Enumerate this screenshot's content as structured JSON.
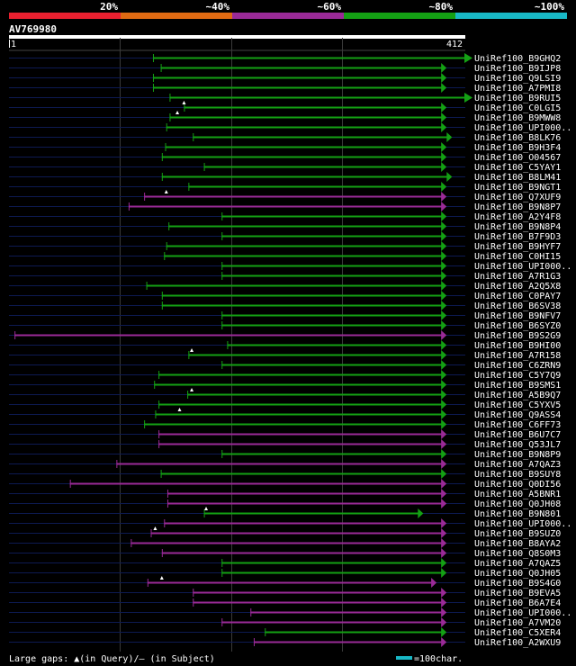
{
  "query_id": "AV769980",
  "query_length": 412,
  "ruler": {
    "start_label": "1",
    "end_label": "412"
  },
  "identity_scale": [
    {
      "label": "20%",
      "color": "#e8202f"
    },
    {
      "label": "~40%",
      "color": "#e06a12"
    },
    {
      "label": "~60%",
      "color": "#9a2a97"
    },
    {
      "label": "~80%",
      "color": "#14a014"
    },
    {
      "label": "~100%",
      "color": "#18b8c6"
    }
  ],
  "colors": {
    "green": "#14a014",
    "purple": "#9a2a97",
    "navy": "#0d1a52",
    "white": "#ffffff"
  },
  "legend": {
    "large_gaps_text": "Large gaps: ▲(in Query)/– (in Subject)",
    "scale_text": "=100char."
  },
  "hits": [
    {
      "label": "UniRef100_B9GHQ2",
      "start": 130,
      "end": 412,
      "color": "green",
      "ext": true,
      "mark": null
    },
    {
      "label": "UniRef100_B9IJP8",
      "start": 137,
      "end": 391,
      "color": "green",
      "ext": false,
      "mark": null
    },
    {
      "label": "UniRef100_Q9LSI9",
      "start": 130,
      "end": 391,
      "color": "green",
      "ext": false,
      "mark": null
    },
    {
      "label": "UniRef100_A7PMI8",
      "start": 130,
      "end": 391,
      "color": "green",
      "ext": false,
      "mark": null
    },
    {
      "label": "UniRef100_B9RUI5",
      "start": 145,
      "end": 412,
      "color": "green",
      "ext": true,
      "mark": null
    },
    {
      "label": "UniRef100_C0LGI5",
      "start": 158,
      "end": 391,
      "color": "green",
      "ext": false,
      "mark": 158
    },
    {
      "label": "UniRef100_B9MWW8",
      "start": 145,
      "end": 391,
      "color": "green",
      "ext": false,
      "mark": 152
    },
    {
      "label": "UniRef100_UPI000..",
      "start": 142,
      "end": 391,
      "color": "green",
      "ext": false,
      "mark": null
    },
    {
      "label": "UniRef100_B8LK76",
      "start": 166,
      "end": 396,
      "color": "green",
      "ext": false,
      "mark": null
    },
    {
      "label": "UniRef100_B9H3F4",
      "start": 141,
      "end": 391,
      "color": "green",
      "ext": false,
      "mark": null
    },
    {
      "label": "UniRef100_O04567",
      "start": 138,
      "end": 391,
      "color": "green",
      "ext": false,
      "mark": null
    },
    {
      "label": "UniRef100_C5YAY1",
      "start": 176,
      "end": 391,
      "color": "green",
      "ext": false,
      "mark": null
    },
    {
      "label": "UniRef100_B8LM41",
      "start": 138,
      "end": 396,
      "color": "green",
      "ext": false,
      "mark": null
    },
    {
      "label": "UniRef100_B9NGT1",
      "start": 162,
      "end": 391,
      "color": "green",
      "ext": false,
      "mark": null
    },
    {
      "label": "UniRef100_Q7XUF9",
      "start": 122,
      "end": 391,
      "color": "purple",
      "ext": false,
      "mark": 142
    },
    {
      "label": "UniRef100_B9N8P7",
      "start": 108,
      "end": 391,
      "color": "purple",
      "ext": false,
      "mark": null
    },
    {
      "label": "UniRef100_A2Y4F8",
      "start": 192,
      "end": 391,
      "color": "green",
      "ext": false,
      "mark": null
    },
    {
      "label": "UniRef100_B9N8P4",
      "start": 144,
      "end": 391,
      "color": "green",
      "ext": false,
      "mark": null
    },
    {
      "label": "UniRef100_B7F9D3",
      "start": 192,
      "end": 391,
      "color": "green",
      "ext": false,
      "mark": null
    },
    {
      "label": "UniRef100_B9HYF7",
      "start": 142,
      "end": 391,
      "color": "green",
      "ext": false,
      "mark": null
    },
    {
      "label": "UniRef100_C0HI15",
      "start": 140,
      "end": 391,
      "color": "green",
      "ext": false,
      "mark": null
    },
    {
      "label": "UniRef100_UPI000..",
      "start": 192,
      "end": 391,
      "color": "green",
      "ext": false,
      "mark": null
    },
    {
      "label": "UniRef100_A7R1G3",
      "start": 192,
      "end": 391,
      "color": "green",
      "ext": false,
      "mark": null
    },
    {
      "label": "UniRef100_A2Q5X8",
      "start": 124,
      "end": 391,
      "color": "green",
      "ext": false,
      "mark": null
    },
    {
      "label": "UniRef100_C0PAY7",
      "start": 138,
      "end": 391,
      "color": "green",
      "ext": false,
      "mark": null
    },
    {
      "label": "UniRef100_B6SV38",
      "start": 138,
      "end": 391,
      "color": "green",
      "ext": false,
      "mark": null
    },
    {
      "label": "UniRef100_B9NFV7",
      "start": 192,
      "end": 391,
      "color": "green",
      "ext": false,
      "mark": null
    },
    {
      "label": "UniRef100_B6SYZ0",
      "start": 192,
      "end": 391,
      "color": "green",
      "ext": false,
      "mark": null
    },
    {
      "label": "UniRef100_B9S2G9",
      "start": 5,
      "end": 391,
      "color": "purple",
      "ext": false,
      "mark": null
    },
    {
      "label": "UniRef100_B9HI00",
      "start": 197,
      "end": 391,
      "color": "green",
      "ext": false,
      "mark": null
    },
    {
      "label": "UniRef100_A7R158",
      "start": 162,
      "end": 391,
      "color": "green",
      "ext": false,
      "mark": 165
    },
    {
      "label": "UniRef100_C6ZRN9",
      "start": 192,
      "end": 391,
      "color": "green",
      "ext": false,
      "mark": null
    },
    {
      "label": "UniRef100_C5Y7Q9",
      "start": 135,
      "end": 391,
      "color": "green",
      "ext": false,
      "mark": null
    },
    {
      "label": "UniRef100_B9SMS1",
      "start": 131,
      "end": 391,
      "color": "green",
      "ext": false,
      "mark": null
    },
    {
      "label": "UniRef100_A5B9Q7",
      "start": 161,
      "end": 391,
      "color": "green",
      "ext": false,
      "mark": 165
    },
    {
      "label": "UniRef100_C5YXV5",
      "start": 135,
      "end": 391,
      "color": "green",
      "ext": false,
      "mark": null
    },
    {
      "label": "UniRef100_Q9ASS4",
      "start": 132,
      "end": 391,
      "color": "green",
      "ext": false,
      "mark": 154
    },
    {
      "label": "UniRef100_C6FF73",
      "start": 122,
      "end": 391,
      "color": "green",
      "ext": false,
      "mark": null
    },
    {
      "label": "UniRef100_B6U7C7",
      "start": 135,
      "end": 391,
      "color": "purple",
      "ext": false,
      "mark": null
    },
    {
      "label": "UniRef100_Q53JL7",
      "start": 135,
      "end": 391,
      "color": "purple",
      "ext": false,
      "mark": null
    },
    {
      "label": "UniRef100_B9N8P9",
      "start": 192,
      "end": 391,
      "color": "green",
      "ext": false,
      "mark": null
    },
    {
      "label": "UniRef100_A7QAZ3",
      "start": 97,
      "end": 391,
      "color": "purple",
      "ext": false,
      "mark": null
    },
    {
      "label": "UniRef100_B9SUY8",
      "start": 137,
      "end": 391,
      "color": "green",
      "ext": false,
      "mark": null
    },
    {
      "label": "UniRef100_Q0DI56",
      "start": 55,
      "end": 391,
      "color": "purple",
      "ext": false,
      "mark": null
    },
    {
      "label": "UniRef100_A5BNR1",
      "start": 143,
      "end": 391,
      "color": "purple",
      "ext": false,
      "mark": null
    },
    {
      "label": "UniRef100_Q0JH08",
      "start": 143,
      "end": 391,
      "color": "purple",
      "ext": false,
      "mark": null
    },
    {
      "label": "UniRef100_B9N801",
      "start": 176,
      "end": 370,
      "color": "green",
      "ext": false,
      "mark": 178
    },
    {
      "label": "UniRef100_UPI000..",
      "start": 140,
      "end": 391,
      "color": "purple",
      "ext": false,
      "mark": null
    },
    {
      "label": "UniRef100_B9SUZ0",
      "start": 128,
      "end": 391,
      "color": "purple",
      "ext": false,
      "mark": 132
    },
    {
      "label": "UniRef100_B8AYA2",
      "start": 110,
      "end": 391,
      "color": "purple",
      "ext": false,
      "mark": null
    },
    {
      "label": "UniRef100_Q8S0M3",
      "start": 138,
      "end": 391,
      "color": "purple",
      "ext": false,
      "mark": null
    },
    {
      "label": "UniRef100_A7QAZ5",
      "start": 192,
      "end": 391,
      "color": "green",
      "ext": false,
      "mark": null
    },
    {
      "label": "UniRef100_Q0JH05",
      "start": 192,
      "end": 391,
      "color": "green",
      "ext": false,
      "mark": null
    },
    {
      "label": "UniRef100_B9S4G0",
      "start": 125,
      "end": 382,
      "color": "purple",
      "ext": false,
      "mark": 138
    },
    {
      "label": "UniRef100_B9EVA5",
      "start": 166,
      "end": 391,
      "color": "purple",
      "ext": false,
      "mark": null
    },
    {
      "label": "UniRef100_B6A7E4",
      "start": 166,
      "end": 391,
      "color": "purple",
      "ext": false,
      "mark": null
    },
    {
      "label": "UniRef100_UPI000..",
      "start": 218,
      "end": 391,
      "color": "purple",
      "ext": false,
      "mark": null
    },
    {
      "label": "UniRef100_A7VM20",
      "start": 192,
      "end": 391,
      "color": "purple",
      "ext": false,
      "mark": null
    },
    {
      "label": "UniRef100_C5XER4",
      "start": 231,
      "end": 391,
      "color": "green",
      "ext": false,
      "mark": null
    },
    {
      "label": "UniRef100_A2WXU9",
      "start": 221,
      "end": 391,
      "color": "purple",
      "ext": false,
      "mark": null
    }
  ]
}
